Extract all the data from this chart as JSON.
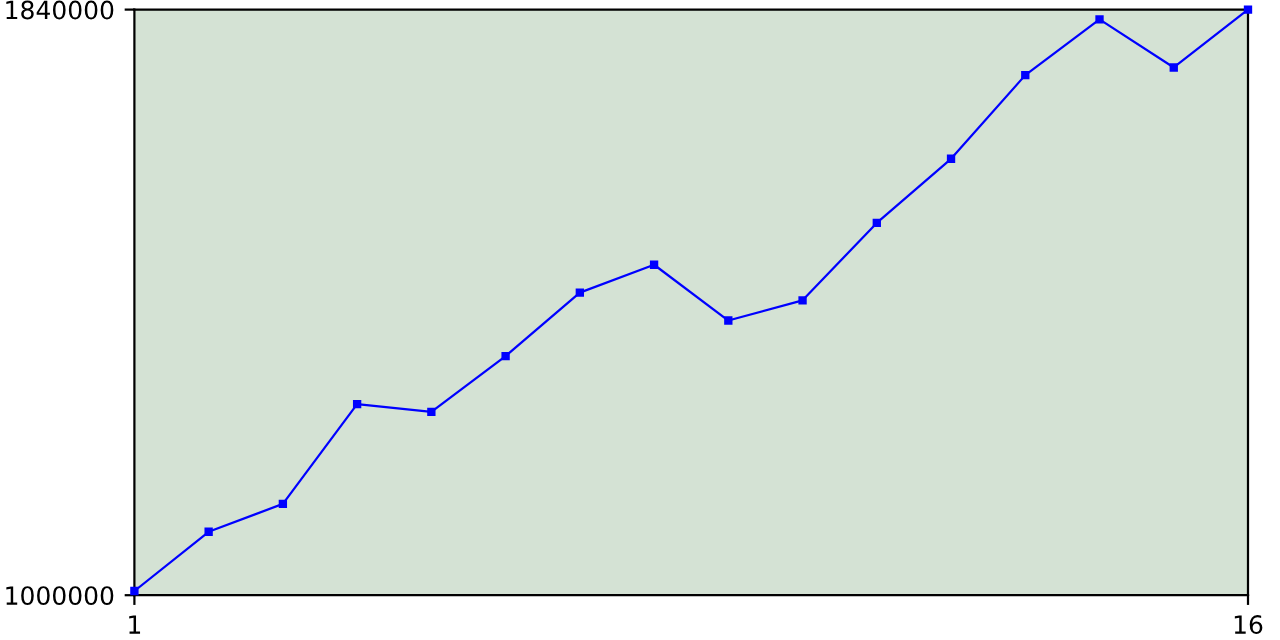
{
  "chart_data": {
    "type": "line",
    "x": [
      1,
      2,
      3,
      4,
      5,
      6,
      7,
      8,
      9,
      10,
      11,
      12,
      13,
      14,
      15,
      16
    ],
    "series": [
      {
        "color": "#0000ff",
        "values": [
          1006000,
          1091000,
          1131000,
          1274000,
          1263000,
          1343000,
          1434000,
          1474000,
          1394000,
          1423000,
          1534000,
          1626000,
          1746000,
          1826000,
          1757000,
          1840000
        ]
      }
    ],
    "xlim": [
      1,
      16
    ],
    "ylim": [
      1000000,
      1840000
    ],
    "xticks": [
      1,
      16
    ],
    "yticks": [
      1000000,
      1840000
    ],
    "grid": false,
    "marker": "square",
    "line_style": "solid"
  }
}
